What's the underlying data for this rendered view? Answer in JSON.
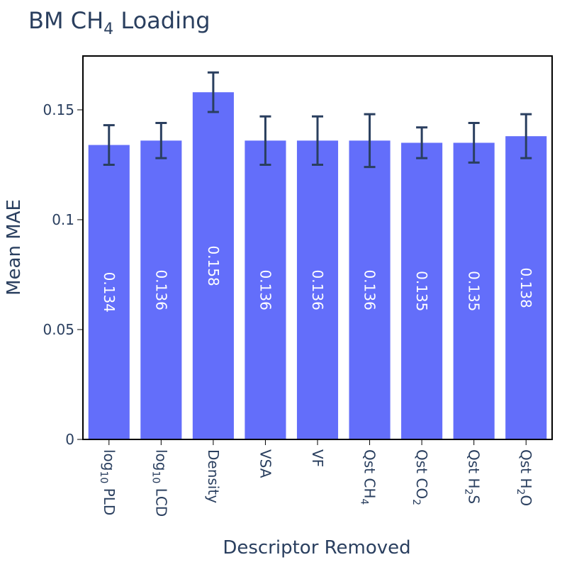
{
  "chart_data": {
    "type": "bar",
    "title": {
      "main": "BM CH",
      "sub": "4",
      "tail": " Loading"
    },
    "xlabel": "Descriptor Removed",
    "ylabel": "Mean MAE",
    "ylim": [
      0,
      0.1745
    ],
    "yticks": [
      {
        "value": 0,
        "label": "0"
      },
      {
        "value": 0.05,
        "label": "0.05"
      },
      {
        "value": 0.1,
        "label": "0.1"
      },
      {
        "value": 0.15,
        "label": "0.15"
      }
    ],
    "categories": [
      {
        "parts": [
          {
            "t": "log"
          },
          {
            "t": "10",
            "sub": true
          },
          {
            "t": " PLD"
          }
        ]
      },
      {
        "parts": [
          {
            "t": "log"
          },
          {
            "t": "10",
            "sub": true
          },
          {
            "t": " LCD"
          }
        ]
      },
      {
        "parts": [
          {
            "t": "Density"
          }
        ]
      },
      {
        "parts": [
          {
            "t": "VSA"
          }
        ]
      },
      {
        "parts": [
          {
            "t": "VF"
          }
        ]
      },
      {
        "parts": [
          {
            "t": "Qst CH"
          },
          {
            "t": "4",
            "sub": true
          }
        ]
      },
      {
        "parts": [
          {
            "t": "Qst CO"
          },
          {
            "t": "2",
            "sub": true
          }
        ]
      },
      {
        "parts": [
          {
            "t": "Qst H"
          },
          {
            "t": "2",
            "sub": true
          },
          {
            "t": "S"
          }
        ]
      },
      {
        "parts": [
          {
            "t": "Qst H"
          },
          {
            "t": "2",
            "sub": true
          },
          {
            "t": "O"
          }
        ]
      }
    ],
    "values": [
      0.134,
      0.136,
      0.158,
      0.136,
      0.136,
      0.136,
      0.135,
      0.135,
      0.138
    ],
    "labels": [
      "0.134",
      "0.136",
      "0.158",
      "0.136",
      "0.136",
      "0.136",
      "0.135",
      "0.135",
      "0.138"
    ],
    "error_low": [
      0.125,
      0.128,
      0.149,
      0.125,
      0.125,
      0.124,
      0.128,
      0.126,
      0.128
    ],
    "error_high": [
      0.143,
      0.144,
      0.167,
      0.147,
      0.147,
      0.148,
      0.142,
      0.144,
      0.148
    ],
    "bar_color": "#636efa",
    "error_color": "#2a3f5f",
    "grid": false,
    "legend": "none"
  }
}
